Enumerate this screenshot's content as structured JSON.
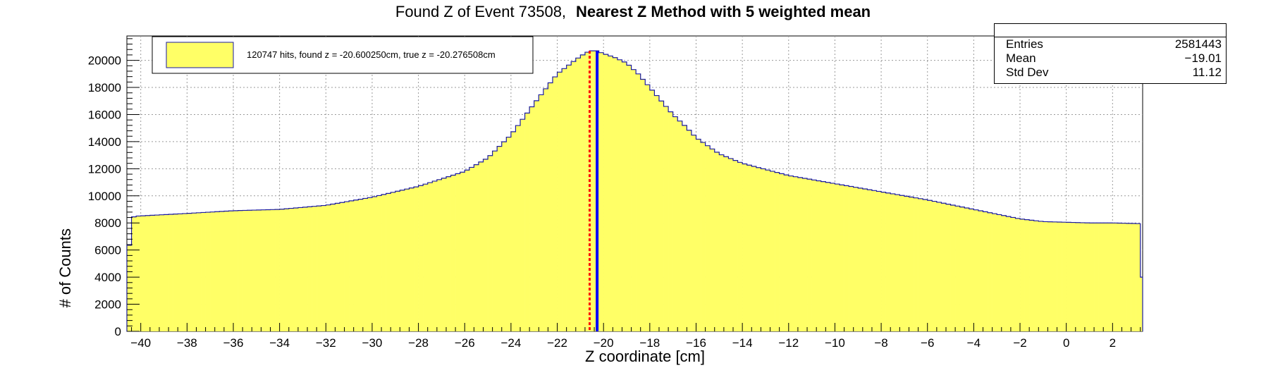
{
  "title": {
    "main": "Found Z of Event 73508,",
    "bold": "Nearest Z Method with 5 weighted mean"
  },
  "stats": {
    "entries_label": "Entries",
    "entries_value": "2581443",
    "mean_label": "Mean",
    "mean_value": "−19.01",
    "std_label": "Std Dev",
    "std_value": "11.12"
  },
  "legend": {
    "text": "120747 hits, found z = -20.600250cm, true z = -20.276508cm"
  },
  "chart_data": {
    "type": "bar",
    "title": "Found Z of Event 73508,   Nearest Z Method with 5 weighted mean",
    "xlabel": "Z coordinate [cm]",
    "ylabel": "# of Counts",
    "xlim": [
      -40.6,
      3.3
    ],
    "ylim": [
      0,
      21800
    ],
    "xticks": [
      -40,
      -38,
      -36,
      -34,
      -32,
      -30,
      -28,
      -26,
      -24,
      -22,
      -20,
      -18,
      -16,
      -14,
      -12,
      -10,
      -8,
      -6,
      -4,
      -2,
      0,
      2
    ],
    "yticks": [
      0,
      2000,
      4000,
      6000,
      8000,
      10000,
      12000,
      14000,
      16000,
      18000,
      20000
    ],
    "grid": true,
    "legend_position": "top-left",
    "fill_color": "#ffff66",
    "line_color": "#1a1aa0",
    "found_z": -20.60025,
    "true_z": -20.276508,
    "found_z_color": "#ff0000",
    "true_z_color": "#0000ff",
    "profile_x": [
      -40.6,
      -40.4,
      -40.2,
      -38,
      -36,
      -34,
      -32,
      -30,
      -28,
      -26,
      -25,
      -24,
      -23,
      -22,
      -21,
      -20.6,
      -20.3,
      -20,
      -19.5,
      -19,
      -18.5,
      -18,
      -17.5,
      -17,
      -16.5,
      -16,
      -15,
      -14,
      -12,
      -10,
      -8,
      -6,
      -4,
      -2,
      -1,
      0,
      1,
      2,
      3.1,
      3.15,
      3.3
    ],
    "profile_y": [
      4300,
      8400,
      8500,
      8700,
      8900,
      9000,
      9300,
      9900,
      10700,
      11800,
      12800,
      14500,
      16800,
      19000,
      20300,
      20700,
      20700,
      20500,
      20200,
      19800,
      19000,
      18000,
      17000,
      16000,
      15200,
      14300,
      13100,
      12400,
      11500,
      10900,
      10300,
      9700,
      9000,
      8300,
      8100,
      8050,
      8000,
      8000,
      7950,
      4000,
      4000
    ]
  }
}
